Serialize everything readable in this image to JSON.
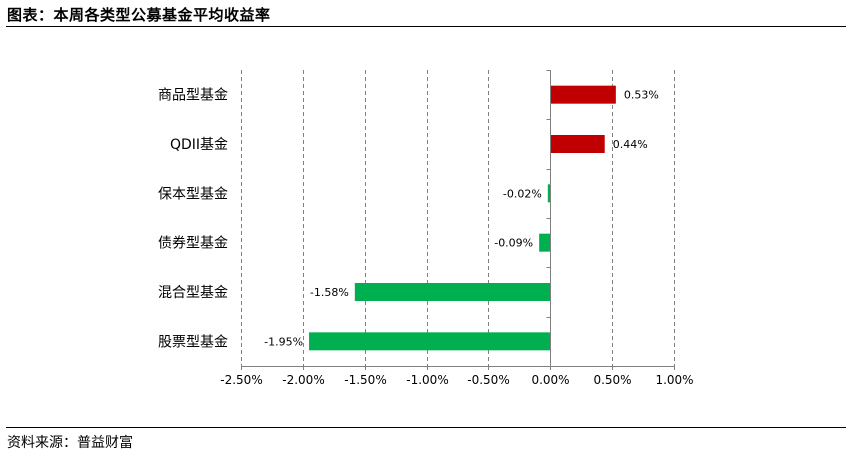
{
  "header": {
    "title": "图表：本周各类型公募基金平均收益率"
  },
  "footer": {
    "source": "资料来源：普益财富"
  },
  "colors": {
    "positive": "#c00000",
    "negative": "#00b050",
    "grid": "#808080",
    "axis": "#808080"
  },
  "chart_data": {
    "type": "bar",
    "orientation": "horizontal",
    "categories": [
      "商品型基金",
      "QDII基金",
      "保本型基金",
      "债券型基金",
      "混合型基金",
      "股票型基金"
    ],
    "values": [
      0.53,
      0.44,
      -0.02,
      -0.09,
      -1.58,
      -1.95
    ],
    "value_labels": [
      "0.53%",
      "0.44%",
      "-0.02%",
      "-0.09%",
      "-1.58%",
      "-1.95%"
    ],
    "xlim": [
      -2.5,
      1.0
    ],
    "xticks": [
      -2.5,
      -2.0,
      -1.5,
      -1.0,
      -0.5,
      0.0,
      0.5,
      1.0
    ],
    "xtick_labels": [
      "-2.50%",
      "-2.00%",
      "-1.50%",
      "-1.00%",
      "-0.50%",
      "0.00%",
      "0.50%",
      "1.00%"
    ],
    "grid": "vertical dashed",
    "legend": "none"
  }
}
